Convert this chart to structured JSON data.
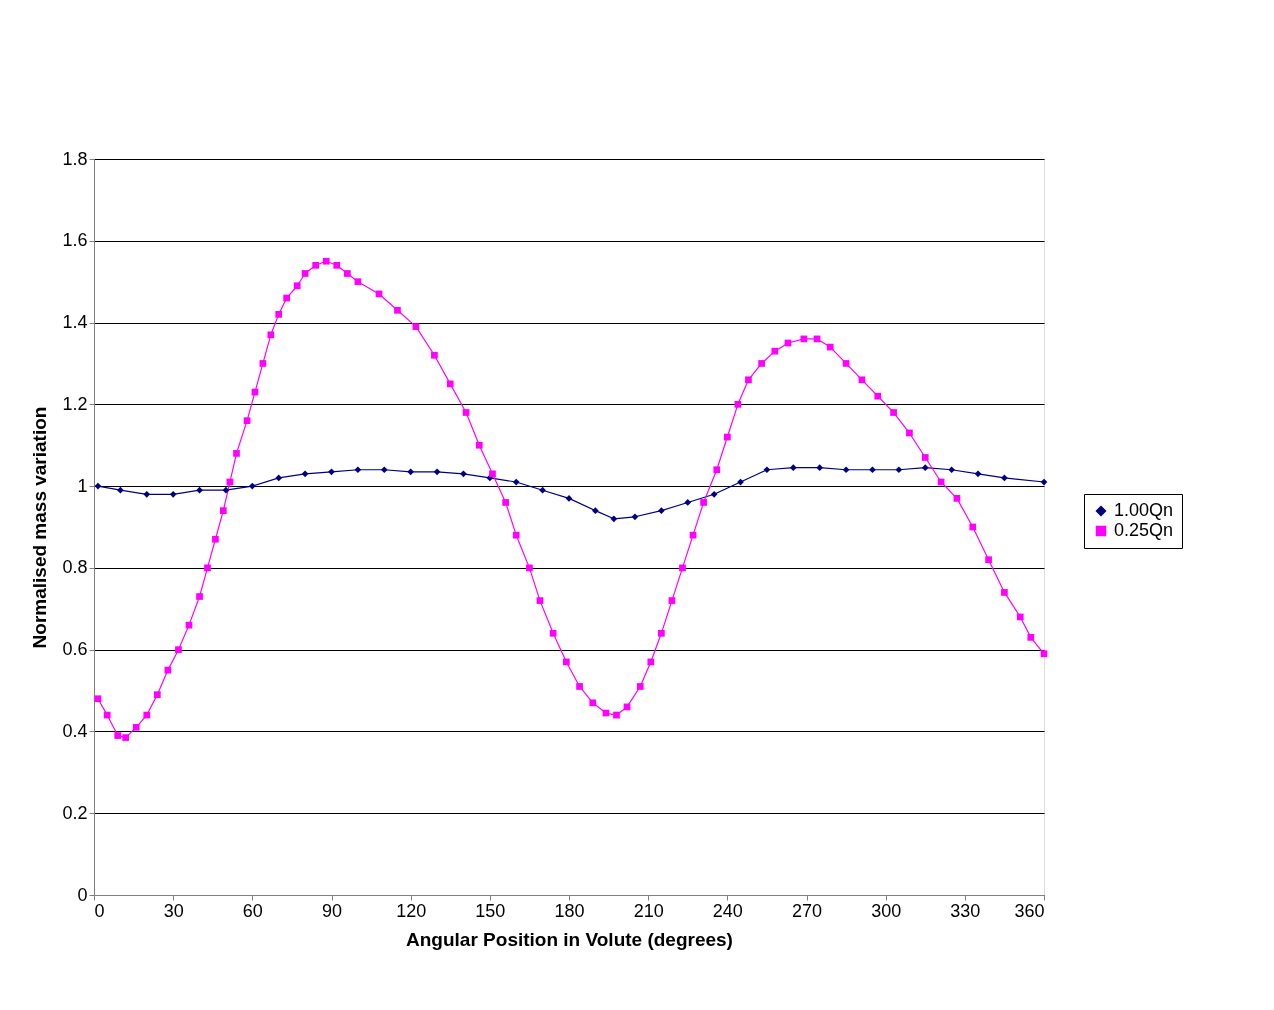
{
  "chart_data": {
    "type": "line",
    "xlabel": "Angular Position in Volute (degrees)",
    "ylabel": "Normalised mass variation",
    "xlim": [
      0,
      360
    ],
    "xticks": [
      0,
      30,
      60,
      90,
      120,
      150,
      180,
      210,
      240,
      270,
      300,
      330,
      360
    ],
    "ylim": [
      0,
      1.8
    ],
    "yticks": [
      0,
      0.2,
      0.4,
      0.6,
      0.8,
      1,
      1.2,
      1.4,
      1.6,
      1.8
    ],
    "grid": "y",
    "legend": "right",
    "series": [
      {
        "name": "1.00Qn",
        "color": "#000080",
        "marker": "diamond",
        "x": [
          1.5,
          10,
          20,
          30,
          40,
          50,
          60,
          70,
          80,
          90,
          100,
          110,
          120,
          130,
          140,
          150,
          160,
          170,
          180,
          190,
          197,
          205,
          215,
          225,
          235,
          245,
          255,
          265,
          275,
          285,
          295,
          305,
          315,
          325,
          335,
          345,
          360
        ],
        "values": [
          1.0,
          0.99,
          0.98,
          0.98,
          0.99,
          0.99,
          1.0,
          1.02,
          1.03,
          1.035,
          1.04,
          1.04,
          1.035,
          1.035,
          1.03,
          1.02,
          1.01,
          0.99,
          0.97,
          0.94,
          0.92,
          0.925,
          0.94,
          0.96,
          0.98,
          1.01,
          1.04,
          1.045,
          1.045,
          1.04,
          1.04,
          1.04,
          1.045,
          1.04,
          1.03,
          1.02,
          1.01
        ]
      },
      {
        "name": "0.25Qn",
        "color": "#ff00ff",
        "marker": "square",
        "x": [
          1.5,
          5,
          9,
          12,
          16,
          20,
          24,
          28,
          32,
          36,
          40,
          43,
          46,
          49,
          51.5,
          54,
          58,
          61,
          64,
          67,
          70,
          73,
          77,
          80,
          84,
          88,
          92,
          96,
          100,
          108,
          115,
          122,
          129,
          135,
          141,
          146,
          151,
          156,
          160,
          165,
          169,
          174,
          179,
          184,
          189,
          194,
          198,
          202,
          207,
          211,
          215,
          219,
          223,
          227,
          231,
          236,
          240,
          244,
          248,
          253,
          258,
          263,
          269,
          274,
          279,
          285,
          291,
          297,
          303,
          309,
          315,
          321,
          327,
          333,
          339,
          345,
          351,
          355,
          360
        ],
        "values": [
          0.48,
          0.44,
          0.39,
          0.385,
          0.41,
          0.44,
          0.49,
          0.55,
          0.6,
          0.66,
          0.73,
          0.8,
          0.87,
          0.94,
          1.01,
          1.08,
          1.16,
          1.23,
          1.3,
          1.37,
          1.42,
          1.46,
          1.49,
          1.52,
          1.54,
          1.55,
          1.54,
          1.52,
          1.5,
          1.47,
          1.43,
          1.39,
          1.32,
          1.25,
          1.18,
          1.1,
          1.03,
          0.96,
          0.88,
          0.8,
          0.72,
          0.64,
          0.57,
          0.51,
          0.47,
          0.445,
          0.44,
          0.46,
          0.51,
          0.57,
          0.64,
          0.72,
          0.8,
          0.88,
          0.96,
          1.04,
          1.12,
          1.2,
          1.26,
          1.3,
          1.33,
          1.35,
          1.36,
          1.36,
          1.34,
          1.3,
          1.26,
          1.22,
          1.18,
          1.13,
          1.07,
          1.01,
          0.97,
          0.9,
          0.82,
          0.74,
          0.68,
          0.63,
          0.59
        ]
      }
    ]
  }
}
